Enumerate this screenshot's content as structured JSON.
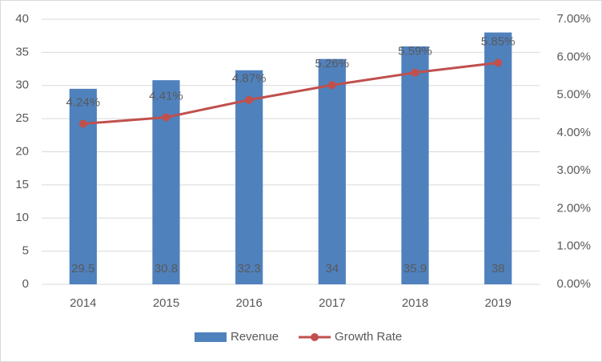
{
  "chart_data": {
    "type": "bar",
    "categories": [
      "2014",
      "2015",
      "2016",
      "2017",
      "2018",
      "2019"
    ],
    "series": [
      {
        "name": "Revenue",
        "type": "bar",
        "color": "#4f81bd",
        "values": [
          29.5,
          30.8,
          32.3,
          34,
          35.9,
          38
        ]
      },
      {
        "name": "Growth Rate",
        "type": "line",
        "axis": "y2",
        "color": "#c0504d",
        "values": [
          4.24,
          4.41,
          4.87,
          5.26,
          5.59,
          5.85
        ],
        "value_labels": [
          "4.24%",
          "4.41%",
          "4.87%",
          "5.26%",
          "5.59%",
          "5.85%"
        ]
      }
    ],
    "ylim": [
      0,
      40
    ],
    "yticks": [
      0,
      5,
      10,
      15,
      20,
      25,
      30,
      35,
      40
    ],
    "y2lim": [
      0,
      7
    ],
    "y2ticks": [
      {
        "value": 0,
        "label": "0.00%"
      },
      {
        "value": 1,
        "label": "1.00%"
      },
      {
        "value": 2,
        "label": "2.00%"
      },
      {
        "value": 3,
        "label": "3.00%"
      },
      {
        "value": 4,
        "label": "4.00%"
      },
      {
        "value": 5,
        "label": "5.00%"
      },
      {
        "value": 6,
        "label": "6.00%"
      },
      {
        "value": 7,
        "label": "7.00%"
      }
    ],
    "grid": true,
    "legend": "bottom"
  }
}
